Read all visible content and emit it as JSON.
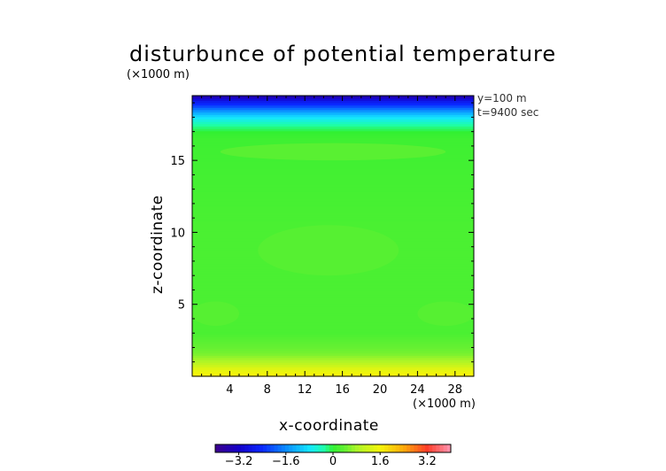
{
  "title": "disturbunce of potential temperature",
  "info": {
    "y": "y=100 m",
    "t": "t=9400 sec"
  },
  "colors": {
    "bg": "#ffffff",
    "frame": "#000000",
    "band_purple": "#4b2bb8",
    "band_blue": "#1a2fe0",
    "band_cyan": "#19c9ff",
    "band_aqua": "#28ffb0",
    "band_green": "#3cf23c",
    "band_light_green": "#6fef3c",
    "band_yellowgreen": "#b7f530",
    "band_yellow": "#f2f20c"
  },
  "chart_data": {
    "type": "heatmap",
    "title": "disturbunce of potential temperature",
    "xlabel": "x-coordinate",
    "ylabel": "z-coordinate",
    "x_unit": "(×1000 m)",
    "y_unit": "(×1000 m)",
    "xlim": [
      0,
      30
    ],
    "ylim": [
      0,
      19.5
    ],
    "x_ticks": [
      "4",
      "8",
      "12",
      "16",
      "20",
      "24",
      "28"
    ],
    "y_ticks": [
      "5",
      "10",
      "15"
    ],
    "x_tick_values": [
      4,
      8,
      12,
      16,
      20,
      24,
      28
    ],
    "y_tick_values": [
      5,
      10,
      15
    ],
    "colorbar": {
      "range": [
        -4,
        4
      ],
      "tick_labels": [
        "−3.2",
        "−1.6",
        "0",
        "1.6",
        "3.2"
      ],
      "tick_values": [
        -3.2,
        -1.6,
        0,
        1.6,
        3.2
      ]
    },
    "profile_z": [
      19.5,
      19.2,
      18.8,
      18.5,
      18.0,
      17.5,
      17.0,
      16.5,
      10.0,
      3.0,
      1.6,
      1.0,
      0.5,
      0.0
    ],
    "profile_value": [
      -3.6,
      -2.8,
      -2.2,
      -1.6,
      -0.8,
      -0.3,
      0.0,
      0.1,
      0.2,
      0.2,
      0.5,
      0.9,
      1.4,
      1.7
    ],
    "blobs": [
      {
        "x": [
          3,
          27
        ],
        "z": [
          15.0,
          16.2
        ],
        "value": 0.35
      },
      {
        "x": [
          7,
          22
        ],
        "z": [
          7.0,
          10.5
        ],
        "value": 0.3
      },
      {
        "x": [
          0,
          5
        ],
        "z": [
          3.5,
          5.2
        ],
        "value": 0.3
      },
      {
        "x": [
          24,
          30
        ],
        "z": [
          3.5,
          5.2
        ],
        "value": 0.3
      }
    ]
  }
}
